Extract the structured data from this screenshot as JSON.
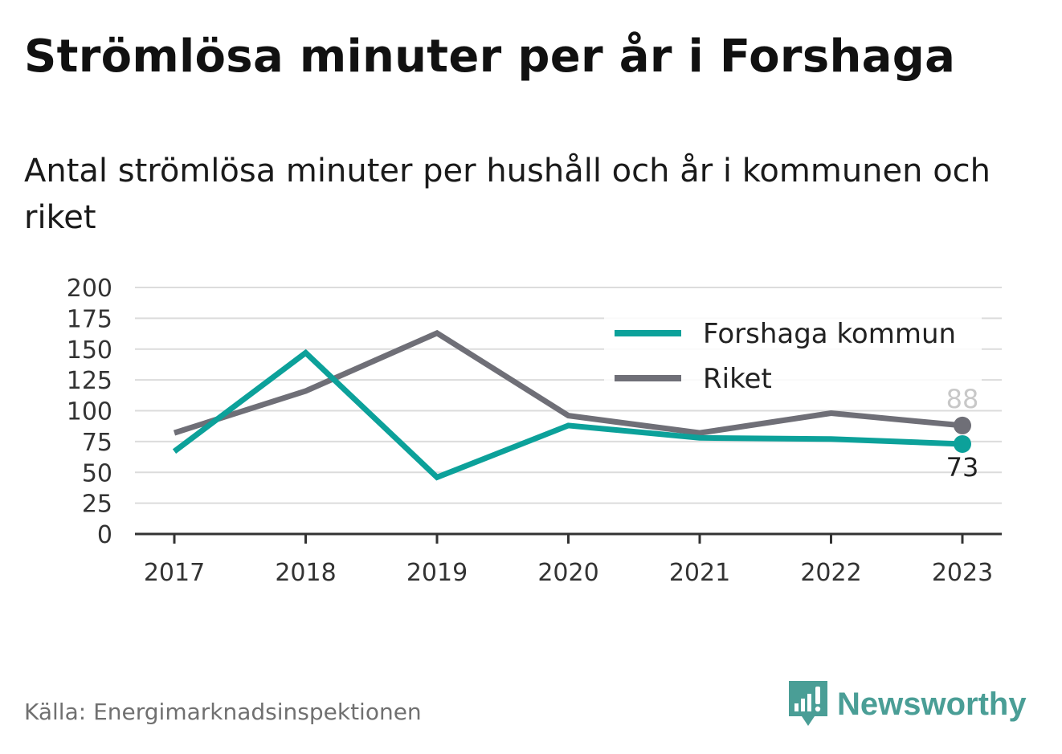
{
  "title": "Strömlösa minuter per år i Forshaga",
  "subtitle": "Antal strömlösa minuter per hushåll och år i kommunen och riket",
  "source": "Källa: Energimarknadsinspektionen",
  "brand": {
    "name": "Newsworthy",
    "icon": "newsworthy-logo-icon",
    "color": "#4a9e96"
  },
  "chart_data": {
    "type": "line",
    "x": [
      "2017",
      "2018",
      "2019",
      "2020",
      "2021",
      "2022",
      "2023"
    ],
    "ylim": [
      0,
      200
    ],
    "yticks": [
      "0",
      "25",
      "50",
      "75",
      "100",
      "125",
      "150",
      "175",
      "200"
    ],
    "grid": true,
    "legend_position": "top-right",
    "series": [
      {
        "name": "Forshaga kommun",
        "color": "#0ca19a",
        "values": [
          67,
          147,
          46,
          88,
          78,
          77,
          73
        ]
      },
      {
        "name": "Riket",
        "color": "#6f6f77",
        "values": [
          82,
          116,
          163,
          96,
          82,
          98,
          88
        ]
      }
    ],
    "end_labels": [
      "73",
      "88"
    ]
  }
}
